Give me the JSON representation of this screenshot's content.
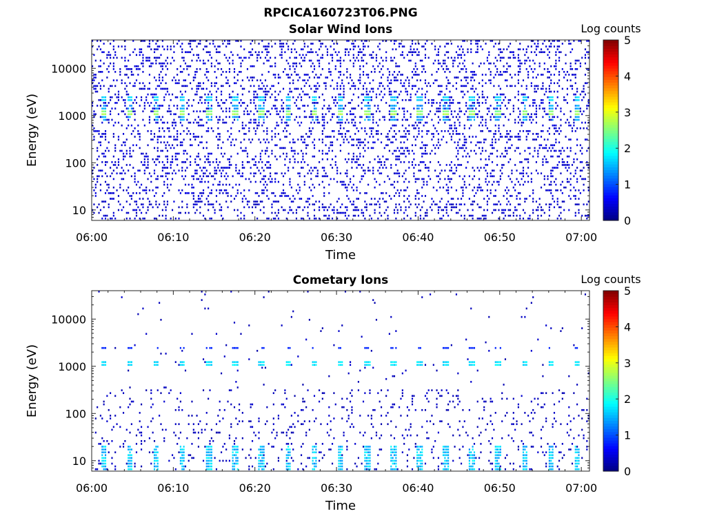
{
  "figure_title": "RPCICA160723T06.PNG",
  "chart_data": [
    {
      "type": "heatmap",
      "title": "Solar Wind Ions",
      "xlabel": "Time",
      "ylabel": "Energy (eV)",
      "x_ticks": [
        "06:00",
        "06:10",
        "06:20",
        "06:30",
        "06:40",
        "06:50",
        "07:00"
      ],
      "x_range_minutes": [
        0,
        61
      ],
      "y_scale": "log",
      "y_ticks": [
        10,
        100,
        1000,
        10000
      ],
      "y_tick_labels": [
        "10",
        "100",
        "1000",
        "10000"
      ],
      "y_range": [
        6,
        40000
      ],
      "colorbar": {
        "label": "Log counts",
        "range": [
          0,
          5
        ],
        "ticks": [
          "0",
          "1",
          "2",
          "3",
          "4",
          "5"
        ],
        "colormap": "jet"
      },
      "background_color": "#ffffff",
      "sweep_times_min": [
        1.4,
        4.6,
        7.8,
        11.0,
        14.3,
        17.5,
        20.7,
        24.0,
        27.2,
        30.4,
        33.7,
        36.9,
        40.1,
        43.3,
        46.5,
        49.7,
        53.0,
        56.2,
        59.4
      ],
      "peak_energy_ev": 1100,
      "peak_log_counts": 2.8,
      "secondary_energy_ev": 2300,
      "secondary_log_counts": 1.5,
      "background_level_log_counts": 0.3
    },
    {
      "type": "heatmap",
      "title": "Cometary Ions",
      "xlabel": "Time",
      "ylabel": "Energy (eV)",
      "x_ticks": [
        "06:00",
        "06:10",
        "06:20",
        "06:30",
        "06:40",
        "06:50",
        "07:00"
      ],
      "x_range_minutes": [
        0,
        61
      ],
      "y_scale": "log",
      "y_ticks": [
        10,
        100,
        1000,
        10000
      ],
      "y_tick_labels": [
        "10",
        "100",
        "1000",
        "10000"
      ],
      "y_range": [
        6,
        40000
      ],
      "colorbar": {
        "label": "Log counts",
        "range": [
          0,
          5
        ],
        "ticks": [
          "0",
          "1",
          "2",
          "3",
          "4",
          "5"
        ],
        "colormap": "jet"
      },
      "background_color": "#ffffff",
      "sweep_times_min": [
        1.4,
        4.6,
        7.8,
        11.0,
        14.3,
        17.5,
        20.7,
        24.0,
        27.2,
        30.4,
        33.7,
        36.9,
        40.1,
        43.3,
        46.5,
        49.7,
        53.0,
        56.2,
        59.4
      ],
      "peak_energy_ev": 1100,
      "peak_log_counts": 1.6,
      "low_energy_band_ev": [
        6,
        20
      ],
      "low_energy_log_counts": 1.3,
      "background_level_log_counts": 0.2
    }
  ]
}
